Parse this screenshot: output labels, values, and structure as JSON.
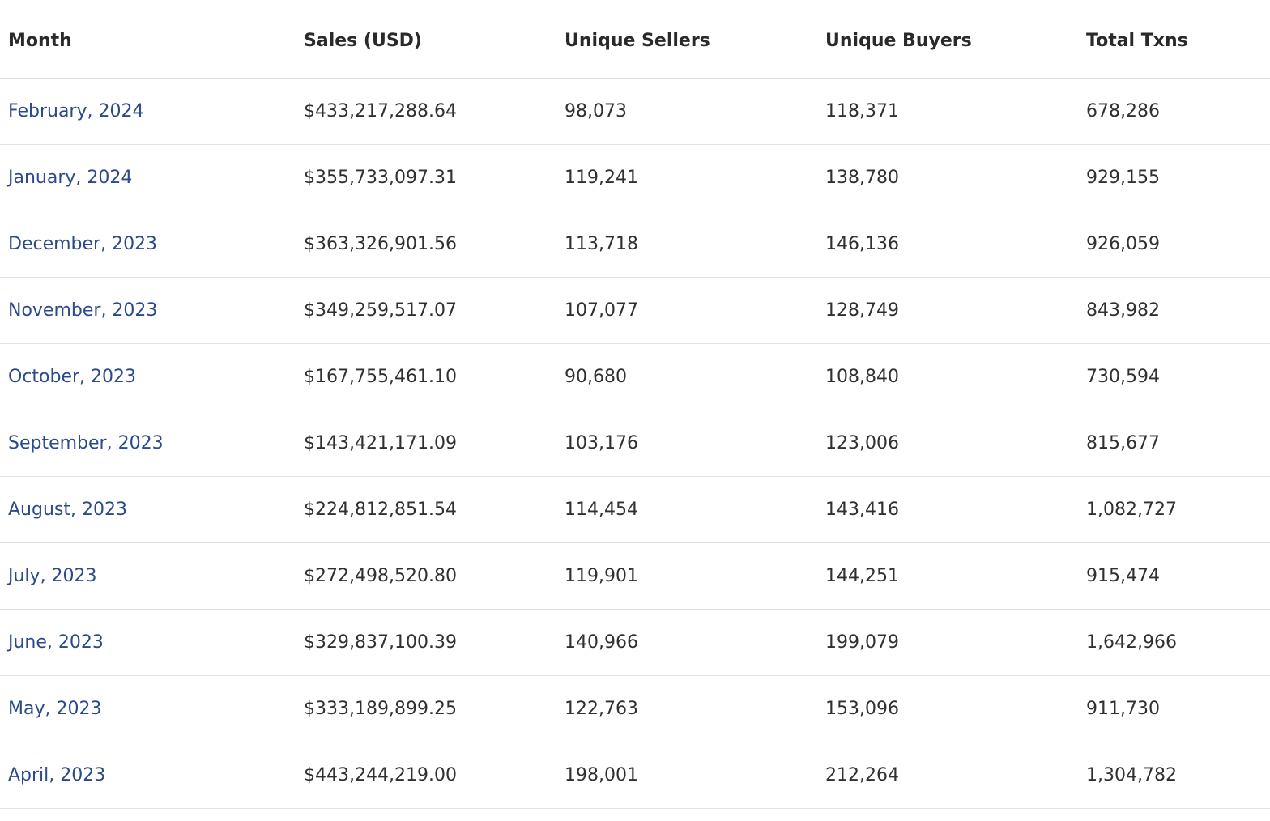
{
  "table": {
    "columns": [
      "Month",
      "Sales (USD)",
      "Unique Sellers",
      "Unique Buyers",
      "Total Txns"
    ],
    "rows": [
      {
        "month": "February, 2024",
        "sales": "$433,217,288.64",
        "sellers": "98,073",
        "buyers": "118,371",
        "txns": "678,286"
      },
      {
        "month": "January, 2024",
        "sales": "$355,733,097.31",
        "sellers": "119,241",
        "buyers": "138,780",
        "txns": "929,155"
      },
      {
        "month": "December, 2023",
        "sales": "$363,326,901.56",
        "sellers": "113,718",
        "buyers": "146,136",
        "txns": "926,059"
      },
      {
        "month": "November, 2023",
        "sales": "$349,259,517.07",
        "sellers": "107,077",
        "buyers": "128,749",
        "txns": "843,982"
      },
      {
        "month": "October, 2023",
        "sales": "$167,755,461.10",
        "sellers": "90,680",
        "buyers": "108,840",
        "txns": "730,594"
      },
      {
        "month": "September, 2023",
        "sales": "$143,421,171.09",
        "sellers": "103,176",
        "buyers": "123,006",
        "txns": "815,677"
      },
      {
        "month": "August, 2023",
        "sales": "$224,812,851.54",
        "sellers": "114,454",
        "buyers": "143,416",
        "txns": "1,082,727"
      },
      {
        "month": "July, 2023",
        "sales": "$272,498,520.80",
        "sellers": "119,901",
        "buyers": "144,251",
        "txns": "915,474"
      },
      {
        "month": "June, 2023",
        "sales": "$329,837,100.39",
        "sellers": "140,966",
        "buyers": "199,079",
        "txns": "1,642,966"
      },
      {
        "month": "May, 2023",
        "sales": "$333,189,899.25",
        "sellers": "122,763",
        "buyers": "153,096",
        "txns": "911,730"
      },
      {
        "month": "April, 2023",
        "sales": "$443,244,219.00",
        "sellers": "198,001",
        "buyers": "212,264",
        "txns": "1,304,782"
      }
    ]
  },
  "colors": {
    "link": "#2b4a8c",
    "text": "#303030",
    "divider": "#e3e3e3"
  }
}
